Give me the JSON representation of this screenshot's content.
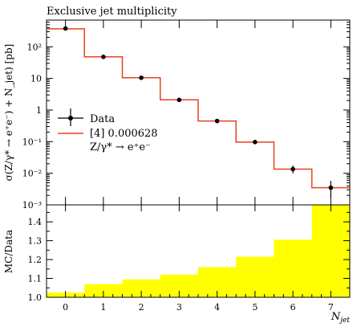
{
  "chart_data": [
    {
      "type": "line",
      "title": "Exclusive jet multiplicity",
      "ylabel": "σ(Z/γ* → e⁺e⁻) + N_jet) [pb]",
      "xlabel": "N_jet",
      "yscale": "log",
      "ylim": [
        0.001,
        700
      ],
      "xlim": [
        -0.5,
        7.5
      ],
      "ytick_labels": [
        "10²",
        "10",
        "1",
        "10⁻¹",
        "10⁻²",
        "10⁻³"
      ],
      "ytick_values": [
        100,
        10,
        1,
        0.1,
        0.01,
        0.001
      ],
      "xtick_labels": [
        "0",
        "1",
        "2",
        "3",
        "4",
        "5",
        "6",
        "7"
      ],
      "legend": {
        "placement": "center-left",
        "entries": [
          "Data",
          "[4] 0.000628",
          "Z/γ* → e⁺e⁻"
        ]
      },
      "series": [
        {
          "name": "Data",
          "style": "points",
          "color": "#000000",
          "x": [
            0,
            1,
            2,
            3,
            4,
            5,
            6,
            7
          ],
          "values": [
            380,
            48,
            10.5,
            2.1,
            0.45,
            0.097,
            0.0135,
            0.0035
          ],
          "err_up": [
            10,
            1.5,
            0.4,
            0.1,
            0.03,
            0.012,
            0.004,
            0.0022
          ],
          "err_down": [
            10,
            1.5,
            0.4,
            0.1,
            0.03,
            0.012,
            0.0035,
            0.0018
          ]
        },
        {
          "name": "[4] 0.000628",
          "style": "histogram",
          "color": "#e8421a",
          "x": [
            0,
            1,
            2,
            3,
            4,
            5,
            6,
            7
          ],
          "values": [
            370,
            48,
            10.5,
            2.1,
            0.45,
            0.097,
            0.0135,
            0.0035
          ]
        }
      ]
    },
    {
      "type": "bar",
      "ylabel": "MC/Data",
      "ylim": [
        1.0,
        1.49
      ],
      "ytick_labels": [
        "1.0",
        "1.1",
        "1.2",
        "1.3",
        "1.4"
      ],
      "ytick_values": [
        1.0,
        1.1,
        1.2,
        1.3,
        1.4
      ],
      "xtick_labels": [
        "0",
        "1",
        "2",
        "3",
        "4",
        "5",
        "6",
        "7"
      ],
      "xlabel": "N_jet",
      "band_color": "#ffff00",
      "categories": [
        0,
        1,
        2,
        3,
        4,
        5,
        6,
        7
      ],
      "values": [
        1.025,
        1.07,
        1.095,
        1.12,
        1.16,
        1.215,
        1.305,
        1.49
      ]
    }
  ]
}
